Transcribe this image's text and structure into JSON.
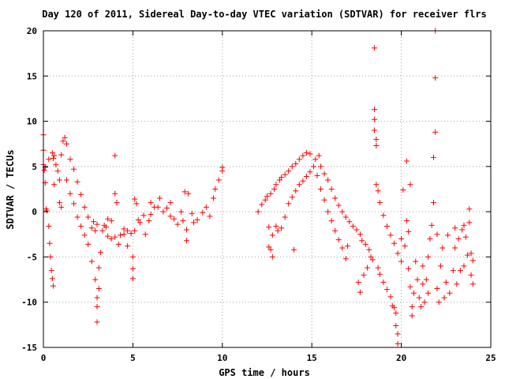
{
  "chart_data": {
    "type": "scatter",
    "title": "Day 120 of 2011, Sidereal Day-to-day VTEC variation (SDTVAR) for receiver flrs",
    "xlabel": "GPS time / hours",
    "ylabel": "SDTVAR / TECUs",
    "xlim": [
      0,
      25
    ],
    "ylim": [
      -15,
      20
    ],
    "xticks": [
      0,
      5,
      10,
      15,
      20,
      25
    ],
    "yticks": [
      -15,
      -10,
      -5,
      0,
      5,
      10,
      15,
      20
    ],
    "xtick_labels": [
      "0",
      "5",
      "10",
      "15",
      "20",
      "25"
    ],
    "ytick_labels": [
      "-15",
      "-10",
      "-5",
      "0",
      "5",
      "10",
      "15",
      "20"
    ],
    "grid": true,
    "marker": "plus",
    "color": "#ff0000",
    "series": [
      {
        "points": [
          [
            0.0,
            8.5
          ],
          [
            0.0,
            6.8
          ],
          [
            0.0,
            5.2
          ],
          [
            0.05,
            4.6
          ],
          [
            0.1,
            4.9
          ],
          [
            0.1,
            3.2
          ],
          [
            0.15,
            0.3
          ],
          [
            0.2,
            0.1
          ],
          [
            0.3,
            5.8
          ],
          [
            0.3,
            -1.6
          ],
          [
            0.35,
            -3.5
          ],
          [
            0.4,
            -5.0
          ],
          [
            0.45,
            -6.5
          ],
          [
            0.5,
            -7.4
          ],
          [
            0.55,
            -8.2
          ],
          [
            0.5,
            6.5
          ],
          [
            0.55,
            5.9
          ],
          [
            0.6,
            6.2
          ],
          [
            0.6,
            3.0
          ],
          [
            0.7,
            5.2
          ],
          [
            0.8,
            4.5
          ],
          [
            0.9,
            3.5
          ],
          [
            0.9,
            1.0
          ],
          [
            1.0,
            0.5
          ],
          [
            1.0,
            6.3
          ],
          [
            1.1,
            7.8
          ],
          [
            1.2,
            8.2
          ],
          [
            1.3,
            7.5
          ],
          [
            1.3,
            3.5
          ],
          [
            1.5,
            2.0
          ],
          [
            1.5,
            5.8
          ],
          [
            1.7,
            4.7
          ],
          [
            1.7,
            0.9
          ],
          [
            1.9,
            3.3
          ],
          [
            1.9,
            -0.6
          ],
          [
            2.1,
            1.9
          ],
          [
            2.1,
            -1.6
          ],
          [
            2.3,
            0.5
          ],
          [
            2.3,
            -2.6
          ],
          [
            2.5,
            -0.6
          ],
          [
            2.5,
            -3.6
          ],
          [
            2.7,
            -1.8
          ],
          [
            2.7,
            -5.5
          ],
          [
            2.8,
            -1.1
          ],
          [
            2.9,
            -2.1
          ],
          [
            3.0,
            -1.4
          ],
          [
            2.9,
            -7.5
          ],
          [
            3.0,
            -9.5
          ],
          [
            3.0,
            -10.5
          ],
          [
            3.0,
            -12.2
          ],
          [
            3.1,
            -8.5
          ],
          [
            3.1,
            -6.2
          ],
          [
            3.2,
            -4.5
          ],
          [
            3.3,
            -2.1
          ],
          [
            3.4,
            -1.5
          ],
          [
            3.5,
            -1.7
          ],
          [
            3.6,
            -2.7
          ],
          [
            3.6,
            -0.8
          ],
          [
            3.8,
            -3.0
          ],
          [
            3.8,
            -1.0
          ],
          [
            4.0,
            2.0
          ],
          [
            4.0,
            6.2
          ],
          [
            4.0,
            -2.8
          ],
          [
            4.1,
            1.0
          ],
          [
            4.2,
            -3.6
          ],
          [
            4.3,
            -2.6
          ],
          [
            4.5,
            -2.5
          ],
          [
            4.5,
            -1.9
          ],
          [
            4.7,
            -3.8
          ],
          [
            4.7,
            -2.1
          ],
          [
            4.9,
            -2.4
          ],
          [
            5.0,
            -6.3
          ],
          [
            5.0,
            -7.4
          ],
          [
            5.0,
            -5.0
          ],
          [
            5.1,
            1.4
          ],
          [
            5.2,
            0.9
          ],
          [
            5.1,
            -2.1
          ],
          [
            5.3,
            -0.9
          ],
          [
            5.4,
            -1.2
          ],
          [
            5.6,
            -0.4
          ],
          [
            5.7,
            -2.5
          ],
          [
            5.9,
            -1.0
          ],
          [
            6.0,
            -0.3
          ],
          [
            6.0,
            1.0
          ],
          [
            6.2,
            0.5
          ],
          [
            6.4,
            0.5
          ],
          [
            6.5,
            1.5
          ],
          [
            6.7,
            0.0
          ],
          [
            6.9,
            0.4
          ],
          [
            7.1,
            1.0
          ],
          [
            7.1,
            -0.5
          ],
          [
            7.3,
            -0.8
          ],
          [
            7.5,
            -1.4
          ],
          [
            7.7,
            0.0
          ],
          [
            7.8,
            -1.0
          ],
          [
            7.9,
            2.2
          ],
          [
            8.0,
            -2.0
          ],
          [
            8.0,
            -3.2
          ],
          [
            8.1,
            2.0
          ],
          [
            8.3,
            -0.2
          ],
          [
            8.4,
            -1.2
          ],
          [
            8.6,
            -0.9
          ],
          [
            8.9,
            -0.1
          ],
          [
            9.1,
            0.5
          ],
          [
            9.3,
            -0.5
          ],
          [
            9.5,
            1.5
          ],
          [
            9.6,
            2.5
          ],
          [
            9.8,
            3.5
          ],
          [
            10.0,
            4.5
          ],
          [
            10.0,
            4.9
          ],
          [
            12.0,
            0.0
          ],
          [
            12.2,
            0.8
          ],
          [
            12.4,
            1.3
          ],
          [
            12.5,
            1.7
          ],
          [
            12.6,
            -3.9
          ],
          [
            12.6,
            -1.7
          ],
          [
            12.7,
            -4.2
          ],
          [
            12.7,
            2.0
          ],
          [
            12.8,
            -5.0
          ],
          [
            12.8,
            -2.6
          ],
          [
            12.9,
            2.5
          ],
          [
            13.0,
            -1.6
          ],
          [
            13.0,
            3.0
          ],
          [
            13.1,
            -2.1
          ],
          [
            13.2,
            3.5
          ],
          [
            13.3,
            -1.8
          ],
          [
            13.3,
            3.8
          ],
          [
            13.5,
            -0.6
          ],
          [
            13.5,
            4.1
          ],
          [
            13.7,
            0.9
          ],
          [
            13.7,
            4.5
          ],
          [
            13.9,
            1.6
          ],
          [
            13.9,
            5.0
          ],
          [
            14.0,
            -4.2
          ],
          [
            14.1,
            2.3
          ],
          [
            14.1,
            5.3
          ],
          [
            14.3,
            3.0
          ],
          [
            14.3,
            5.8
          ],
          [
            14.5,
            3.4
          ],
          [
            14.5,
            6.2
          ],
          [
            14.7,
            3.9
          ],
          [
            14.7,
            6.5
          ],
          [
            14.9,
            4.4
          ],
          [
            14.9,
            6.4
          ],
          [
            15.1,
            5.0
          ],
          [
            15.2,
            5.8
          ],
          [
            15.3,
            4.0
          ],
          [
            15.4,
            6.2
          ],
          [
            15.5,
            2.5
          ],
          [
            15.5,
            5.0
          ],
          [
            15.7,
            1.3
          ],
          [
            15.7,
            4.2
          ],
          [
            15.9,
            0.0
          ],
          [
            15.9,
            3.5
          ],
          [
            16.1,
            -1.0
          ],
          [
            16.1,
            2.5
          ],
          [
            16.3,
            -2.1
          ],
          [
            16.3,
            1.5
          ],
          [
            16.5,
            -3.1
          ],
          [
            16.5,
            0.7
          ],
          [
            16.7,
            -4.0
          ],
          [
            16.7,
            0.0
          ],
          [
            16.9,
            -5.2
          ],
          [
            16.9,
            -0.6
          ],
          [
            17.0,
            -3.8
          ],
          [
            17.1,
            -1.1
          ],
          [
            17.3,
            -1.6
          ],
          [
            17.5,
            -2.0
          ],
          [
            17.6,
            -7.8
          ],
          [
            17.7,
            -8.9
          ],
          [
            17.7,
            -2.5
          ],
          [
            17.8,
            -3.2
          ],
          [
            17.9,
            -7.0
          ],
          [
            18.0,
            -3.6
          ],
          [
            18.1,
            -6.2
          ],
          [
            18.2,
            -4.2
          ],
          [
            18.3,
            -5.0
          ],
          [
            18.4,
            -5.3
          ],
          [
            18.5,
            18.1
          ],
          [
            18.5,
            11.3
          ],
          [
            18.5,
            10.2
          ],
          [
            18.5,
            9.0
          ],
          [
            18.6,
            8.0
          ],
          [
            18.6,
            7.3
          ],
          [
            18.6,
            3.0
          ],
          [
            18.7,
            2.3
          ],
          [
            18.7,
            -6.2
          ],
          [
            18.8,
            1.0
          ],
          [
            18.8,
            -6.9
          ],
          [
            19.0,
            -0.4
          ],
          [
            19.0,
            -7.8
          ],
          [
            19.2,
            -1.6
          ],
          [
            19.2,
            -8.6
          ],
          [
            19.4,
            -2.6
          ],
          [
            19.4,
            -9.4
          ],
          [
            19.5,
            -10.4
          ],
          [
            19.6,
            -10.6
          ],
          [
            19.7,
            -11.2
          ],
          [
            19.7,
            -12.6
          ],
          [
            19.8,
            -13.5
          ],
          [
            19.8,
            -14.6
          ],
          [
            19.6,
            -3.5
          ],
          [
            19.8,
            -4.6
          ],
          [
            20.0,
            -3.0
          ],
          [
            20.0,
            -5.5
          ],
          [
            20.1,
            2.4
          ],
          [
            20.2,
            -3.8
          ],
          [
            20.3,
            5.6
          ],
          [
            20.3,
            -1.0
          ],
          [
            20.4,
            -2.2
          ],
          [
            20.4,
            -6.3
          ],
          [
            20.5,
            3.0
          ],
          [
            20.5,
            -8.3
          ],
          [
            20.6,
            -10.5
          ],
          [
            20.6,
            -11.5
          ],
          [
            20.7,
            -9.0
          ],
          [
            20.8,
            -5.5
          ],
          [
            20.9,
            -7.5
          ],
          [
            21.0,
            -9.5
          ],
          [
            21.1,
            -10.5
          ],
          [
            21.2,
            -8.0
          ],
          [
            21.2,
            -6.0
          ],
          [
            21.3,
            -10.0
          ],
          [
            21.4,
            -7.5
          ],
          [
            21.5,
            -9.0
          ],
          [
            21.5,
            -5.0
          ],
          [
            21.6,
            -3.0
          ],
          [
            21.7,
            -1.5
          ],
          [
            21.8,
            1.0
          ],
          [
            21.8,
            6.0
          ],
          [
            21.9,
            8.8
          ],
          [
            21.9,
            14.8
          ],
          [
            21.9,
            20.0
          ],
          [
            22.0,
            -2.5
          ],
          [
            22.0,
            -8.5
          ],
          [
            22.1,
            -10.0
          ],
          [
            22.2,
            -6.0
          ],
          [
            22.3,
            -4.0
          ],
          [
            22.4,
            -9.5
          ],
          [
            22.5,
            -7.8
          ],
          [
            22.6,
            -2.6
          ],
          [
            22.7,
            -9.0
          ],
          [
            22.9,
            -6.5
          ],
          [
            23.0,
            -4.0
          ],
          [
            23.0,
            -1.8
          ],
          [
            23.1,
            -8.0
          ],
          [
            23.2,
            -3.0
          ],
          [
            23.3,
            -6.5
          ],
          [
            23.4,
            -2.0
          ],
          [
            23.5,
            -1.5
          ],
          [
            23.5,
            -6.0
          ],
          [
            23.6,
            -2.8
          ],
          [
            23.7,
            -4.8
          ],
          [
            23.8,
            0.3
          ],
          [
            23.8,
            -1.2
          ],
          [
            23.9,
            -4.6
          ],
          [
            23.9,
            -7.0
          ],
          [
            24.0,
            -8.0
          ],
          [
            24.0,
            -5.4
          ]
        ]
      }
    ]
  }
}
